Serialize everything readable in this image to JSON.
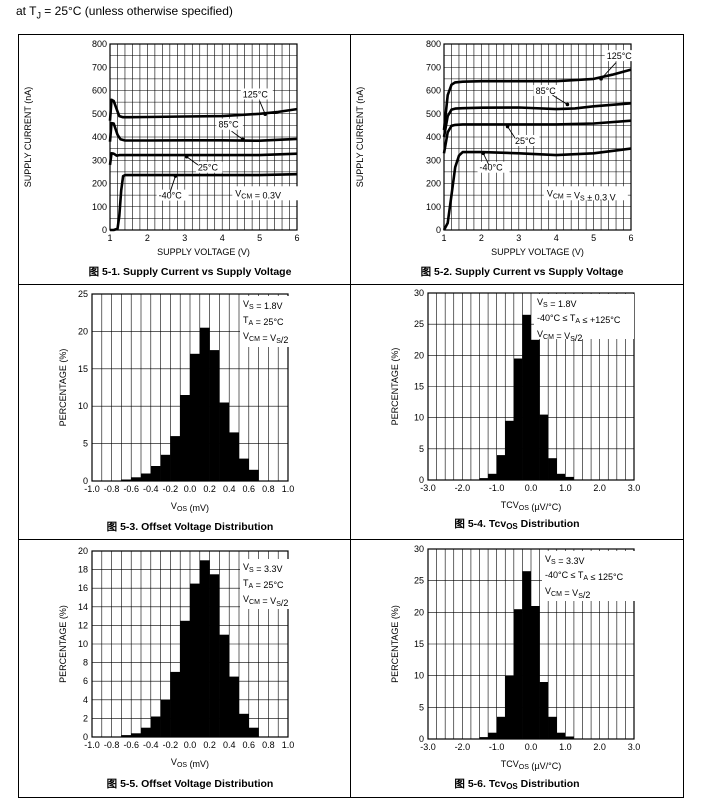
{
  "header": {
    "prefix": "at T",
    "sub": "J",
    "suffix": " = 25°C (unless otherwise specified)"
  },
  "chart_data": [
    {
      "type": "line",
      "fig": "图 5-1.",
      "title": "Supply Current vs Supply Voltage",
      "xlabel": "SUPPLY VOLTAGE (V)",
      "ylabel": "SUPPLY CURRENT (nA)",
      "xlim": [
        1,
        6
      ],
      "ylim": [
        0,
        800
      ],
      "xticks": [
        1,
        2,
        3,
        4,
        5,
        6
      ],
      "yticks": [
        0,
        100,
        200,
        300,
        400,
        500,
        600,
        700,
        800
      ],
      "condition": "V_CM = 0.3V",
      "series": [
        {
          "name": "125°C",
          "x": [
            1.0,
            1.04,
            1.1,
            1.2,
            1.25,
            1.35,
            1.5,
            2,
            3,
            4,
            5,
            5.5,
            6
          ],
          "y": [
            470,
            560,
            555,
            510,
            490,
            485,
            485,
            486,
            488,
            490,
            500,
            508,
            520
          ]
        },
        {
          "name": "85°C",
          "x": [
            1.0,
            1.04,
            1.1,
            1.2,
            1.28,
            1.4,
            2,
            3,
            4,
            5,
            6
          ],
          "y": [
            380,
            460,
            458,
            410,
            390,
            385,
            385,
            386,
            386,
            384,
            392
          ]
        },
        {
          "name": "25°C",
          "x": [
            1.0,
            1.04,
            1.1,
            1.18,
            1.25,
            2,
            3,
            4,
            5,
            6
          ],
          "y": [
            280,
            330,
            328,
            320,
            322,
            322,
            322,
            322,
            322,
            328
          ]
        },
        {
          "name": "-40°C",
          "x": [
            1.0,
            1.1,
            1.2,
            1.25,
            1.3,
            1.35,
            1.4,
            2,
            3,
            4,
            5,
            6
          ],
          "y": [
            0,
            0,
            5,
            60,
            170,
            232,
            236,
            236,
            236,
            236,
            236,
            240
          ]
        }
      ],
      "annotations": [
        "125°C",
        "85°C",
        "25°C",
        "-40°C"
      ]
    },
    {
      "type": "line",
      "fig": "图 5-2.",
      "title": "Supply Current vs Supply Voltage",
      "xlabel": "SUPPLY VOLTAGE (V)",
      "ylabel": "SUPPLY CURRENT (nA)",
      "xlim": [
        1,
        6
      ],
      "ylim": [
        0,
        800
      ],
      "xticks": [
        1,
        2,
        3,
        4,
        5,
        6
      ],
      "yticks": [
        0,
        100,
        200,
        300,
        400,
        500,
        600,
        700,
        800
      ],
      "condition": "V_CM = V_S ± 0.3 V",
      "series": [
        {
          "name": "125°C",
          "x": [
            1.0,
            1.1,
            1.2,
            1.3,
            1.5,
            2,
            3,
            4,
            5,
            5.5,
            6
          ],
          "y": [
            430,
            580,
            625,
            635,
            638,
            640,
            640,
            640,
            650,
            668,
            690
          ]
        },
        {
          "name": "85°C",
          "x": [
            1.0,
            1.1,
            1.2,
            1.3,
            1.5,
            2,
            3,
            4,
            4.5,
            5,
            6
          ],
          "y": [
            400,
            490,
            518,
            522,
            524,
            526,
            527,
            520,
            523,
            532,
            545
          ]
        },
        {
          "name": "25°C",
          "x": [
            1.0,
            1.1,
            1.2,
            1.3,
            1.5,
            2,
            3,
            4,
            5,
            6
          ],
          "y": [
            330,
            420,
            448,
            452,
            454,
            454,
            454,
            454,
            458,
            470
          ]
        },
        {
          "name": "-40°C",
          "x": [
            1.0,
            1.1,
            1.2,
            1.3,
            1.4,
            1.5,
            2,
            3,
            4,
            5,
            6
          ],
          "y": [
            0,
            30,
            150,
            270,
            320,
            335,
            335,
            330,
            322,
            330,
            350
          ]
        }
      ],
      "annotations": [
        "125°C",
        "85°C",
        "25°C",
        "-40°C"
      ]
    },
    {
      "type": "bar",
      "fig": "图 5-3.",
      "title": "Offset Voltage Distribution",
      "xlabel": "V_OS (mV)",
      "ylabel": "PERCENTAGE (%)",
      "xlim": [
        -1.0,
        1.0
      ],
      "ylim": [
        0,
        25
      ],
      "xticks": [
        "-1.0",
        "-0.8",
        "-0.6",
        "-0.4",
        "-0.2",
        "0.0",
        "0.2",
        "0.4",
        "0.6",
        "0.8",
        "1.0"
      ],
      "yticks": [
        0,
        5,
        10,
        15,
        20,
        25
      ],
      "conditions": [
        "V_S = 1.8V",
        "T_A = 25°C",
        "V_CM = V_S/2"
      ],
      "bin_width": 0.1,
      "bin_centers": [
        -0.65,
        -0.55,
        -0.45,
        -0.35,
        -0.25,
        -0.15,
        -0.05,
        0.05,
        0.15,
        0.25,
        0.35,
        0.45,
        0.55,
        0.65
      ],
      "values": [
        0.2,
        0.5,
        1.0,
        2.0,
        3.5,
        6.0,
        11.5,
        17.0,
        20.5,
        17.5,
        10.5,
        6.5,
        3.0,
        1.5
      ]
    },
    {
      "type": "bar",
      "fig": "图 5-4.",
      "title": "Tcv_OS Distribution",
      "xlabel": "TCV_OS (µV/°C)",
      "ylabel": "PERCENTAGE (%)",
      "xlim": [
        -3.0,
        3.0
      ],
      "ylim": [
        0,
        30
      ],
      "xticks": [
        "-3.0",
        "-2.0",
        "-1.0",
        "0.0",
        "1.0",
        "2.0",
        "3.0"
      ],
      "yticks": [
        0,
        5,
        10,
        15,
        20,
        25,
        30
      ],
      "conditions": [
        "V_S = 1.8V",
        "-40°C ≤ T_A ≤ +125°C",
        "V_CM = V_S/2"
      ],
      "bin_width": 0.25,
      "bin_centers": [
        -1.375,
        -1.125,
        -0.875,
        -0.625,
        -0.375,
        -0.125,
        0.125,
        0.375,
        0.625,
        0.875,
        1.125
      ],
      "values": [
        0.3,
        1.0,
        4.0,
        9.5,
        19.5,
        26.5,
        22.5,
        10.5,
        3.5,
        1.0,
        0.5
      ]
    },
    {
      "type": "bar",
      "fig": "图 5-5.",
      "title": "Offset Voltage Distribution",
      "xlabel": "V_OS (mV)",
      "ylabel": "PERCENTAGE (%)",
      "xlim": [
        -1.0,
        1.0
      ],
      "ylim": [
        0,
        20
      ],
      "xticks": [
        "-1.0",
        "-0.8",
        "-0.6",
        "-0.4",
        "-0.2",
        "0.0",
        "0.2",
        "0.4",
        "0.6",
        "0.8",
        "1.0"
      ],
      "yticks": [
        0,
        2,
        4,
        6,
        8,
        10,
        12,
        14,
        16,
        18,
        20
      ],
      "conditions": [
        "V_S = 3.3V",
        "T_A = 25°C",
        "V_CM = V_S/2"
      ],
      "bin_width": 0.1,
      "bin_centers": [
        -0.65,
        -0.55,
        -0.45,
        -0.35,
        -0.25,
        -0.15,
        -0.05,
        0.05,
        0.15,
        0.25,
        0.35,
        0.45,
        0.55,
        0.65
      ],
      "values": [
        0.2,
        0.4,
        1.0,
        2.2,
        4.0,
        7.0,
        12.5,
        16.5,
        19.0,
        17.5,
        11.0,
        6.5,
        2.5,
        1.0
      ]
    },
    {
      "type": "bar",
      "fig": "图 5-6.",
      "title": "Tcv_OS Distribution",
      "xlabel": "TCV_OS (µV/°C)",
      "ylabel": "PERCENTAGE (%)",
      "xlim": [
        -3.0,
        3.0
      ],
      "ylim": [
        0,
        30
      ],
      "xticks": [
        "-3.0",
        "-2.0",
        "-1.0",
        "0.0",
        "1.0",
        "2.0",
        "3.0"
      ],
      "yticks": [
        0,
        5,
        10,
        15,
        20,
        25,
        30
      ],
      "conditions": [
        "V_S = 3.3V",
        "-40°C ≤ T_A ≤ 125°C",
        "V_CM = V_S/2"
      ],
      "bin_width": 0.25,
      "bin_centers": [
        -1.375,
        -1.125,
        -0.875,
        -0.625,
        -0.375,
        -0.125,
        0.125,
        0.375,
        0.625,
        0.875,
        1.125
      ],
      "values": [
        0.3,
        1.0,
        3.5,
        10.0,
        20.5,
        26.5,
        21.0,
        9.0,
        3.5,
        1.0,
        0.4
      ]
    }
  ]
}
